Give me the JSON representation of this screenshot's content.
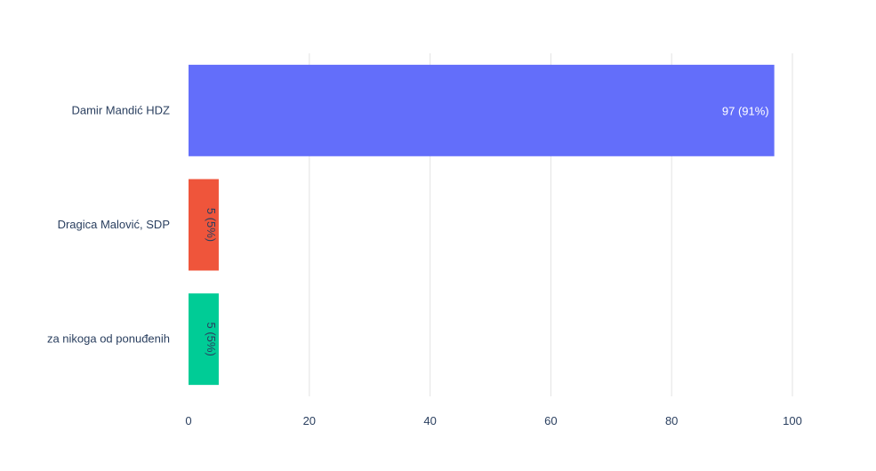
{
  "chart_data": {
    "type": "bar",
    "orientation": "horizontal",
    "categories": [
      "Damir Mandić HDZ",
      "Dragica Malović, SDP",
      "za nikoga od ponuđenih"
    ],
    "values": [
      97,
      5,
      5
    ],
    "value_labels": [
      "97 (91%)",
      "5 (5%)",
      "5 (5%)"
    ],
    "colors": [
      "#636efa",
      "#ef553b",
      "#00cc96"
    ],
    "xlim": [
      0,
      100
    ],
    "xticks": [
      0,
      20,
      40,
      60,
      80,
      100
    ],
    "grid": true,
    "title": "",
    "xlabel": "",
    "ylabel": ""
  }
}
